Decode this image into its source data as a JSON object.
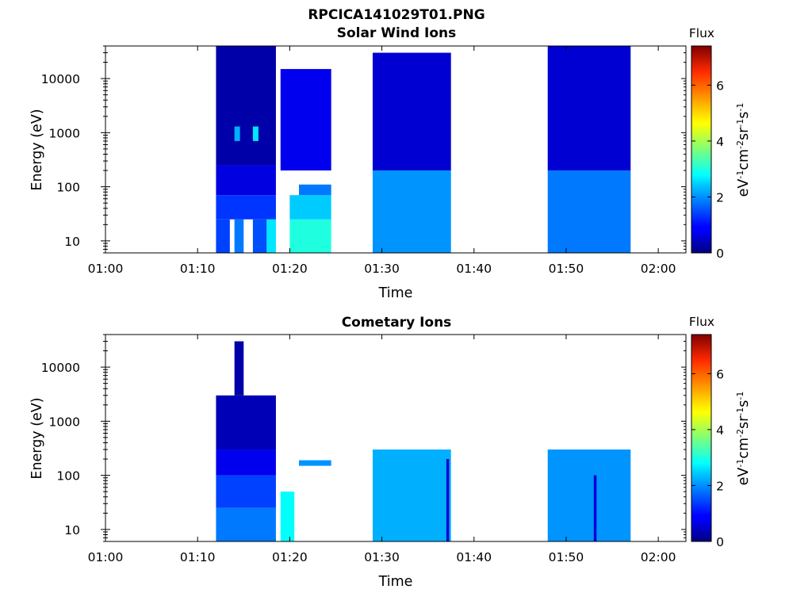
{
  "figure": {
    "title": "RPCICA141029T01.PNG"
  },
  "colorbar": {
    "title": "Flux",
    "label": "eV",
    "label_sup1": "-1",
    "label_mid": "cm",
    "label_sup2": "-2",
    "label_sr": "sr",
    "label_sup3": "-1",
    "label_s": "s",
    "label_sup4": "-1",
    "ticks": [
      "0",
      "2",
      "4",
      "6"
    ],
    "range": [
      0,
      7.4
    ],
    "colormap": "jet"
  },
  "chart_data": [
    {
      "type": "heatmap",
      "title": "Solar Wind Ions",
      "xlabel": "Time",
      "ylabel": "Energy (eV)",
      "yscale": "log",
      "ylim": [
        6,
        40000
      ],
      "xlim": [
        "01:00",
        "02:03"
      ],
      "x_tick_labels": [
        "01:00",
        "01:10",
        "01:20",
        "01:30",
        "01:40",
        "01:50",
        "02:00"
      ],
      "y_tick_labels": [
        "10",
        "100",
        "1000",
        "10000"
      ],
      "cells": [
        {
          "t": "01:12",
          "dt_min": 1.5,
          "e_lo": 6,
          "e_hi": 25,
          "flux": 1.4
        },
        {
          "t": "01:14",
          "dt_min": 1.0,
          "e_lo": 6,
          "e_hi": 25,
          "flux": 1.8
        },
        {
          "t": "01:16",
          "dt_min": 1.5,
          "e_lo": 6,
          "e_hi": 25,
          "flux": 1.5
        },
        {
          "t": "01:17.5",
          "dt_min": 1.0,
          "e_lo": 6,
          "e_hi": 25,
          "flux": 2.6
        },
        {
          "t": "01:12",
          "dt_min": 6.5,
          "e_lo": 25,
          "e_hi": 70,
          "flux": 1.3
        },
        {
          "t": "01:12",
          "dt_min": 6.5,
          "e_lo": 70,
          "e_hi": 250,
          "flux": 0.7
        },
        {
          "t": "01:12",
          "dt_min": 6.5,
          "e_lo": 250,
          "e_hi": 40000,
          "flux": 0.3
        },
        {
          "t": "01:14",
          "dt_min": 0.6,
          "e_lo": 700,
          "e_hi": 1300,
          "flux": 2.2
        },
        {
          "t": "01:16",
          "dt_min": 0.6,
          "e_lo": 700,
          "e_hi": 1300,
          "flux": 2.6
        },
        {
          "t": "01:20",
          "dt_min": 4.5,
          "e_lo": 6,
          "e_hi": 25,
          "flux": 3.0
        },
        {
          "t": "01:20",
          "dt_min": 4.5,
          "e_lo": 25,
          "e_hi": 70,
          "flux": 2.4
        },
        {
          "t": "01:21",
          "dt_min": 3.5,
          "e_lo": 70,
          "e_hi": 110,
          "flux": 1.8
        },
        {
          "t": "01:19",
          "dt_min": 5.5,
          "e_lo": 200,
          "e_hi": 15000,
          "flux": 0.8
        },
        {
          "t": "01:29",
          "dt_min": 8.5,
          "e_lo": 200,
          "e_hi": 30000,
          "flux": 0.6
        },
        {
          "t": "01:29",
          "dt_min": 8.5,
          "e_lo": 6,
          "e_hi": 200,
          "flux": 2.0
        },
        {
          "t": "01:48",
          "dt_min": 9.0,
          "e_lo": 200,
          "e_hi": 40000,
          "flux": 0.6
        },
        {
          "t": "01:48",
          "dt_min": 9.0,
          "e_lo": 6,
          "e_hi": 200,
          "flux": 1.8
        }
      ]
    },
    {
      "type": "heatmap",
      "title": "Cometary Ions",
      "xlabel": "Time",
      "ylabel": "Energy (eV)",
      "yscale": "log",
      "ylim": [
        6,
        40000
      ],
      "xlim": [
        "01:00",
        "02:03"
      ],
      "x_tick_labels": [
        "01:00",
        "01:10",
        "01:20",
        "01:30",
        "01:40",
        "01:50",
        "02:00"
      ],
      "y_tick_labels": [
        "10",
        "100",
        "1000",
        "10000"
      ],
      "cells": [
        {
          "t": "01:12",
          "dt_min": 6.5,
          "e_lo": 6,
          "e_hi": 25,
          "flux": 1.8
        },
        {
          "t": "01:12",
          "dt_min": 6.5,
          "e_lo": 25,
          "e_hi": 100,
          "flux": 1.4
        },
        {
          "t": "01:12",
          "dt_min": 6.5,
          "e_lo": 100,
          "e_hi": 300,
          "flux": 0.8
        },
        {
          "t": "01:12",
          "dt_min": 6.5,
          "e_lo": 300,
          "e_hi": 3000,
          "flux": 0.4
        },
        {
          "t": "01:14",
          "dt_min": 1.0,
          "e_lo": 3000,
          "e_hi": 30000,
          "flux": 0.3
        },
        {
          "t": "01:21",
          "dt_min": 3.5,
          "e_lo": 150,
          "e_hi": 190,
          "flux": 2.0
        },
        {
          "t": "01:19",
          "dt_min": 1.5,
          "e_lo": 6,
          "e_hi": 50,
          "flux": 2.8
        },
        {
          "t": "01:29",
          "dt_min": 8.5,
          "e_lo": 6,
          "e_hi": 300,
          "flux": 2.2
        },
        {
          "t": "01:37",
          "dt_min": 0.3,
          "e_lo": 6,
          "e_hi": 200,
          "flux": 0.6
        },
        {
          "t": "01:48",
          "dt_min": 9.0,
          "e_lo": 6,
          "e_hi": 300,
          "flux": 2.0
        },
        {
          "t": "01:53",
          "dt_min": 0.3,
          "e_lo": 6,
          "e_hi": 100,
          "flux": 0.6
        }
      ]
    }
  ]
}
